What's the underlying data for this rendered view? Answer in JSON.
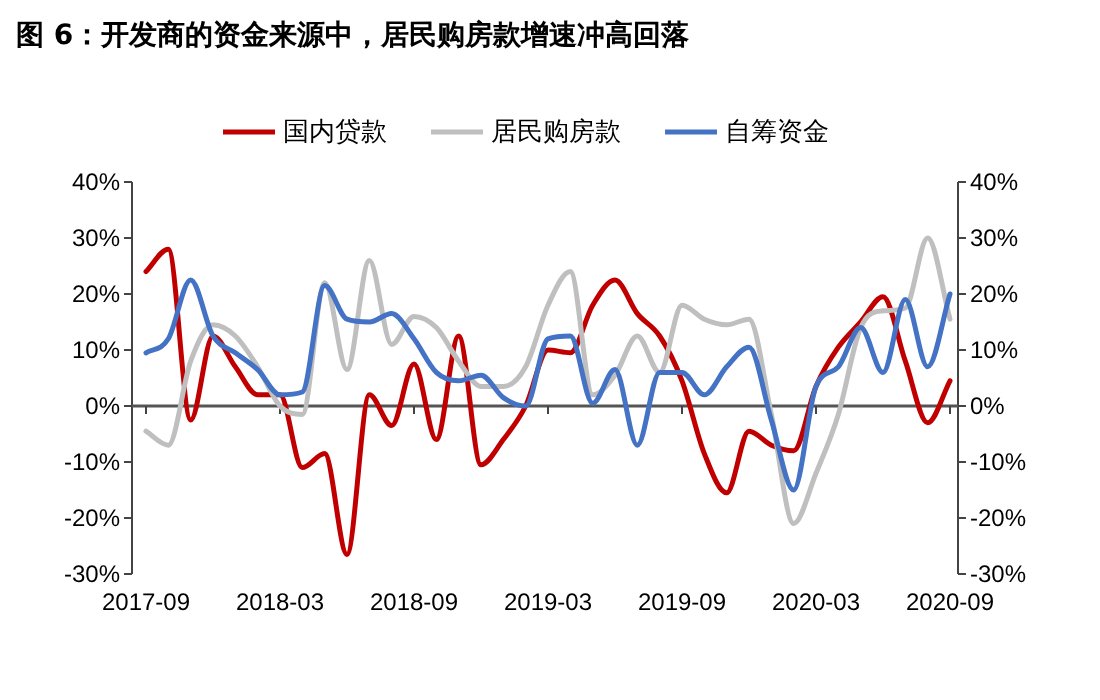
{
  "chart_data": {
    "type": "line",
    "title": "图 6：开发商的资金来源中，居民购房款增速冲高回落",
    "x": [
      "2017-09",
      "2017-10",
      "2017-11",
      "2017-12",
      "2018-01",
      "2018-02",
      "2018-03",
      "2018-04",
      "2018-05",
      "2018-06",
      "2018-07",
      "2018-08",
      "2018-09",
      "2018-10",
      "2018-11",
      "2018-12",
      "2019-01",
      "2019-02",
      "2019-03",
      "2019-04",
      "2019-05",
      "2019-06",
      "2019-07",
      "2019-08",
      "2019-09",
      "2019-10",
      "2019-11",
      "2019-12",
      "2020-01",
      "2020-02",
      "2020-03",
      "2020-04",
      "2020-05",
      "2020-06",
      "2020-07",
      "2020-08",
      "2020-09"
    ],
    "series": [
      {
        "name": "国内贷款",
        "color": "#c00000",
        "values": [
          24,
          28,
          -2.5,
          12.5,
          7,
          2,
          2,
          -11,
          -8.5,
          -26.5,
          2,
          -3.5,
          7.5,
          -6,
          12.5,
          -10.5,
          -6,
          0,
          10,
          9.5,
          18,
          22.5,
          16.5,
          12.5,
          4.5,
          -8.5,
          -15.5,
          -4.5,
          -7,
          -8,
          3.5,
          10.5,
          15,
          19.5,
          8,
          -3,
          4.5
        ]
      },
      {
        "name": "居民购房款",
        "color": "#bfbfbf",
        "values": [
          -4.5,
          -7,
          8,
          14.5,
          12.5,
          7,
          0,
          -1.5,
          22,
          6.5,
          26,
          11,
          16,
          14,
          8,
          3.5,
          3.5,
          7,
          18,
          24,
          2,
          5.5,
          12.5,
          6,
          18,
          15.5,
          14.5,
          15.5,
          -1.5,
          -21,
          -12,
          -1.5,
          14,
          17,
          17.5,
          30,
          15.5
        ]
      },
      {
        "name": "自筹资金",
        "color": "#4472c4",
        "values": [
          9.5,
          12,
          22.5,
          12.5,
          9.5,
          6.5,
          2,
          2.5,
          21.5,
          15.5,
          15,
          16.5,
          12,
          6,
          4.5,
          5.5,
          1.5,
          0,
          12,
          12.5,
          0.5,
          6.5,
          -7,
          6,
          6,
          2,
          7,
          10.5,
          -2.5,
          -15,
          3.5,
          7,
          14,
          6,
          19,
          7,
          20
        ]
      }
    ],
    "xlim": [
      "2017-09",
      "2020-09"
    ],
    "xticks": [
      "2017-09",
      "2018-03",
      "2018-09",
      "2019-03",
      "2019-09",
      "2020-03",
      "2020-09"
    ],
    "ylim": [
      -30,
      40
    ],
    "yticks": [
      {
        "value": -30,
        "label": "-30%"
      },
      {
        "value": -20,
        "label": "-20%"
      },
      {
        "value": -10,
        "label": "-10%"
      },
      {
        "value": 0,
        "label": "0%"
      },
      {
        "value": 10,
        "label": "10%"
      },
      {
        "value": 20,
        "label": "20%"
      },
      {
        "value": 30,
        "label": "30%"
      },
      {
        "value": 40,
        "label": "40%"
      }
    ],
    "y2lim": [
      -30,
      40
    ],
    "y2ticks": [
      {
        "value": -30,
        "label": "-30%"
      },
      {
        "value": -20,
        "label": "-20%"
      },
      {
        "value": -10,
        "label": "-10%"
      },
      {
        "value": 0,
        "label": "0%"
      },
      {
        "value": 10,
        "label": "10%"
      },
      {
        "value": 20,
        "label": "20%"
      },
      {
        "value": 30,
        "label": "30%"
      },
      {
        "value": 40,
        "label": "40%"
      }
    ],
    "legend": "top",
    "marker": "none",
    "line_style": "solid"
  }
}
